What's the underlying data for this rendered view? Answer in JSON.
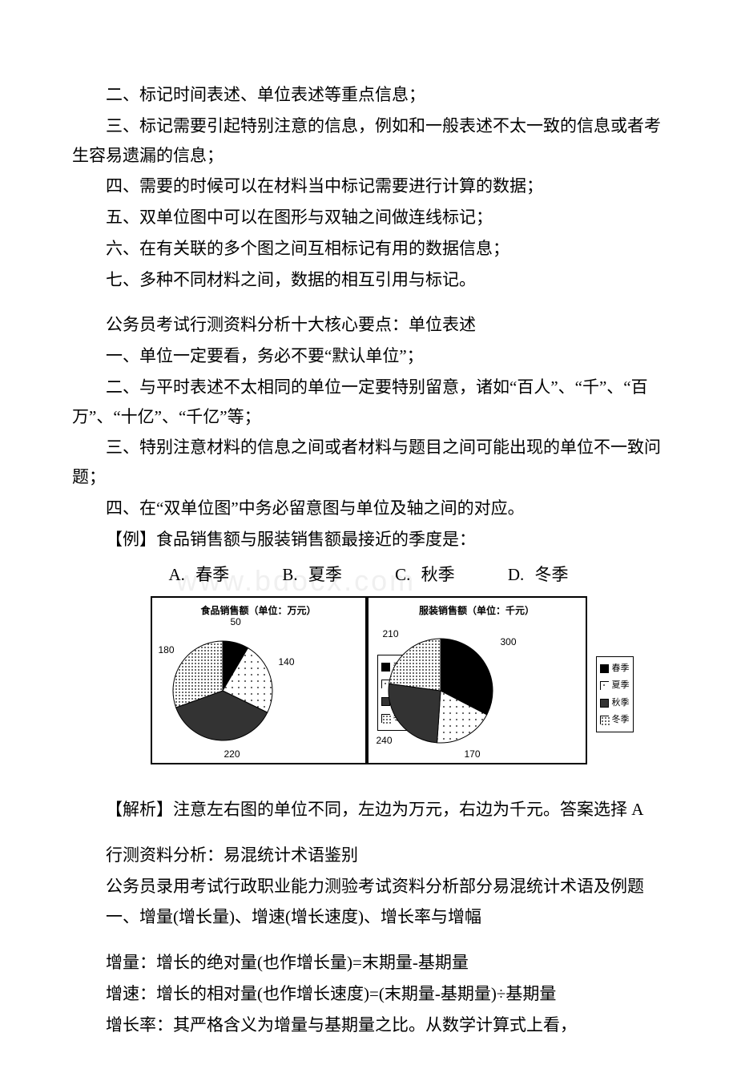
{
  "paragraphs": {
    "p1": "二、标记时间表述、单位表述等重点信息；",
    "p2": "三、标记需要引起特别注意的信息，例如和一般表述不太一致的信息或者考生容易遗漏的信息；",
    "p3": "四、需要的时候可以在材料当中标记需要进行计算的数据；",
    "p4": "五、双单位图中可以在图形与双轴之间做连线标记；",
    "p5": "六、在有关联的多个图之间互相标记有用的数据信息；",
    "p6": "七、多种不同材料之间，数据的相互引用与标记。",
    "p7": "公务员考试行测资料分析十大核心要点：单位表述",
    "p8": "一、单位一定要看，务必不要“默认单位”；",
    "p9": "二、与平时表述不太相同的单位一定要特别留意，诸如“百人”、“千”、“百万”、“十亿”、“千亿”等；",
    "p10": "三、特别注意材料的信息之间或者材料与题目之间可能出现的单位不一致问题；",
    "p11": "四、在“双单位图”中务必留意图与单位及轴之间的对应。",
    "p12": "【例】食品销售额与服装销售额最接近的季度是：",
    "p13": "【解析】注意左右图的单位不同，左边为万元，右边为千元。答案选择 A",
    "p14": "行测资料分析：易混统计术语鉴别",
    "p15": "公务员录用考试行政职业能力测验考试资料分析部分易混统计术语及例题",
    "p16": "一、增量(增长量)、增速(增长速度)、增长率与增幅",
    "p17": "增量：增长的绝对量(也作增长量)=末期量-基期量",
    "p18": "增速：增长的相对量(也作增长速度)=(末期量-基期量)÷基期量",
    "p19": "增长率：其严格含义为增量与基期量之比。从数学计算式上看，"
  },
  "options": {
    "a": "A. 春季",
    "b": "B. 夏季",
    "c": "C. 秋季",
    "d": "D. 冬季"
  },
  "watermark": "www.bdocx.com",
  "chart_left": {
    "type": "pie",
    "title": "食品销售额（单位：万元）",
    "labels": [
      "春季",
      "夏季",
      "秋季",
      "冬季"
    ],
    "values": [
      50,
      140,
      220,
      180
    ],
    "value_labels": [
      "50",
      "140",
      "220",
      "180"
    ],
    "colors": [
      "#000000",
      "#ffffff",
      "#333333",
      "#eeeeee"
    ],
    "patterns": [
      "solid",
      "sparse-dots",
      "solid",
      "dense-dots"
    ],
    "border_color": "#000000",
    "title_fontsize": 12,
    "label_fontsize": 12
  },
  "chart_right": {
    "type": "pie",
    "title": "服装销售额（单位：千元）",
    "labels": [
      "春季",
      "夏季",
      "秋季",
      "冬季"
    ],
    "values": [
      300,
      170,
      240,
      210
    ],
    "value_labels": [
      "300",
      "170",
      "240",
      "210"
    ],
    "colors": [
      "#000000",
      "#ffffff",
      "#333333",
      "#eeeeee"
    ],
    "patterns": [
      "solid",
      "sparse-dots",
      "solid",
      "dense-dots"
    ],
    "border_color": "#000000",
    "title_fontsize": 12,
    "label_fontsize": 12
  },
  "legend": {
    "items": [
      "春季",
      "夏季",
      "秋季",
      "冬季"
    ]
  }
}
